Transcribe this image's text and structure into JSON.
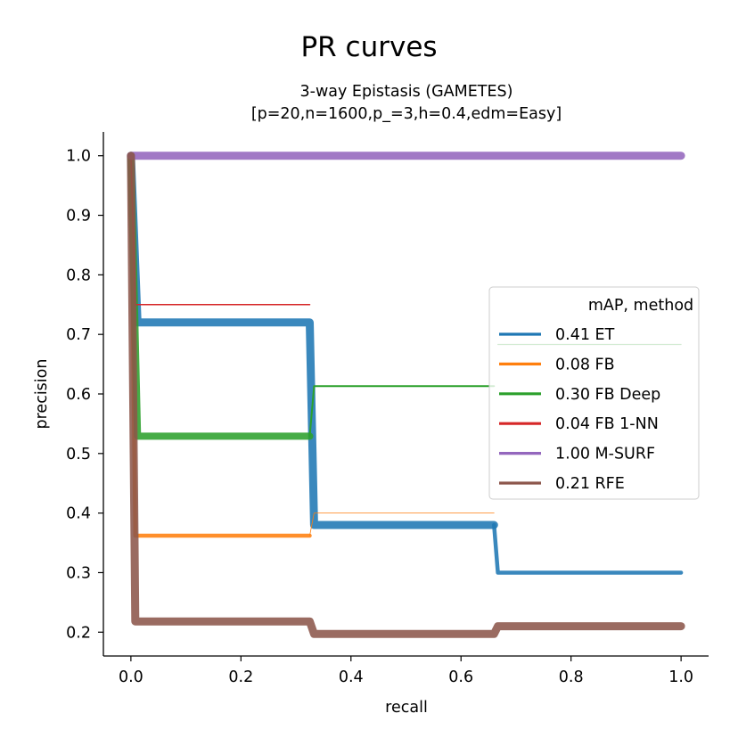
{
  "chart_data": {
    "type": "line",
    "title": "PR curves",
    "subtitle_lines": [
      "3-way Epistasis (GAMETES)",
      "[p=20,n=1600,p_=3,h=0.4,edm=Easy]"
    ],
    "xlabel": "recall",
    "ylabel": "precision",
    "xlim": [
      -0.05,
      1.05
    ],
    "ylim": [
      0.16,
      1.04
    ],
    "xticks": [
      "0.0",
      "0.2",
      "0.4",
      "0.6",
      "0.8",
      "1.0"
    ],
    "yticks": [
      "0.2",
      "0.3",
      "0.4",
      "0.5",
      "0.6",
      "0.7",
      "0.8",
      "0.9",
      "1.0"
    ],
    "grid": false,
    "legend": {
      "title": "mAP, method",
      "placement": "center-right",
      "entries": [
        "0.41 ET",
        "0.08 FB",
        "0.30 FB Deep",
        "0.04 FB 1-NN",
        "1.00 M-SURF",
        "0.21 RFE"
      ]
    },
    "series": [
      {
        "name": "0.41 ET",
        "color": "#1f77b4",
        "segments": [
          {
            "width": 9,
            "points": [
              [
                0.0,
                1.0
              ],
              [
                0.012,
                0.72
              ],
              [
                0.325,
                0.72
              ],
              [
                0.333,
                0.38
              ],
              [
                0.66,
                0.38
              ]
            ]
          },
          {
            "width": 4.5,
            "points": [
              [
                0.66,
                0.38
              ],
              [
                0.667,
                0.3
              ],
              [
                1.0,
                0.3
              ]
            ]
          }
        ]
      },
      {
        "name": "0.08 FB",
        "color": "#ff7f0e",
        "segments": [
          {
            "width": 4.5,
            "points": [
              [
                0.0,
                1.0
              ],
              [
                0.008,
                0.362
              ],
              [
                0.325,
                0.362
              ]
            ]
          },
          {
            "width": 0.8,
            "points": [
              [
                0.325,
                0.362
              ],
              [
                0.333,
                0.4
              ],
              [
                0.66,
                0.4
              ]
            ]
          }
        ]
      },
      {
        "name": "0.30 FB Deep",
        "color": "#2ca02c",
        "segments": [
          {
            "width": 8,
            "points": [
              [
                0.0,
                1.0
              ],
              [
                0.012,
                0.529
              ],
              [
                0.325,
                0.529
              ]
            ]
          },
          {
            "width": 2,
            "points": [
              [
                0.325,
                0.529
              ],
              [
                0.333,
                0.613
              ],
              [
                0.66,
                0.613
              ]
            ]
          },
          {
            "width": 1.2,
            "points": [
              [
                0.667,
                0.683
              ],
              [
                1.0,
                0.683
              ]
            ]
          }
        ]
      },
      {
        "name": "0.04 FB 1-NN",
        "color": "#d62728",
        "segments": [
          {
            "width": 1.5,
            "points": [
              [
                0.0,
                1.0
              ],
              [
                0.008,
                0.75
              ],
              [
                0.325,
                0.75
              ]
            ]
          }
        ]
      },
      {
        "name": "1.00 M-SURF",
        "color": "#9467bd",
        "segments": [
          {
            "width": 9,
            "points": [
              [
                0.0,
                1.0
              ],
              [
                1.0,
                1.0
              ]
            ]
          }
        ]
      },
      {
        "name": "0.21 RFE",
        "color": "#8c564b",
        "segments": [
          {
            "width": 9,
            "points": [
              [
                0.0,
                1.0
              ],
              [
                0.008,
                0.218
              ],
              [
                0.325,
                0.218
              ],
              [
                0.333,
                0.197
              ],
              [
                0.66,
                0.197
              ],
              [
                0.667,
                0.21
              ],
              [
                1.0,
                0.21
              ]
            ]
          }
        ]
      }
    ]
  }
}
